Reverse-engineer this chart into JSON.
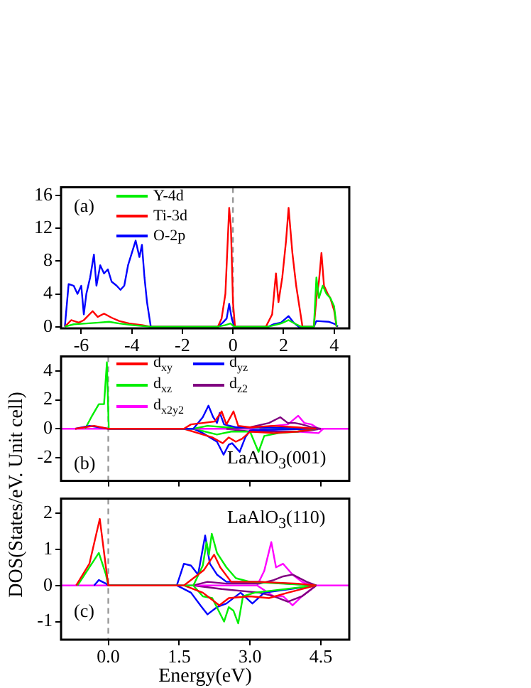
{
  "chart_data": [
    {
      "type": "line",
      "annotations": [
        "(a)"
      ],
      "legend": "top left",
      "xlim": [
        -6.8,
        4.6
      ],
      "xticks": [
        -6,
        -4,
        -2,
        0,
        2,
        4
      ],
      "ylim": [
        -0.2,
        17
      ],
      "yticks": [
        0,
        4,
        8,
        12,
        16
      ],
      "grid": false,
      "ref_lines": [
        {
          "axis": "x",
          "value": 0,
          "color": "#999999",
          "line_style": "dashed"
        }
      ],
      "series": [
        {
          "name": "Y-4d",
          "color": "#00ee00",
          "x": [
            -6.65,
            -6.3,
            -5.8,
            -5.3,
            -4.9,
            -4.5,
            -4,
            -3.25,
            -0.6,
            -0.3,
            -0.1,
            0.05,
            1.4,
            1.9,
            2.2,
            2.5,
            2.7,
            3.2,
            3.3,
            3.4,
            3.55,
            3.7,
            3.85,
            4.0,
            4.1
          ],
          "values": [
            0,
            0.3,
            0.4,
            0.5,
            0.6,
            0.4,
            0.2,
            0,
            0,
            0.2,
            0.4,
            0,
            0,
            0.4,
            0.8,
            0.3,
            0,
            0,
            6,
            3.5,
            5,
            4,
            3.5,
            2.5,
            0
          ]
        },
        {
          "name": "Ti-3d",
          "color": "#ff0000",
          "x": [
            -6.65,
            -6.4,
            -6.1,
            -5.9,
            -5.55,
            -5.35,
            -5.1,
            -4.8,
            -4.5,
            -4.1,
            -3.6,
            -3.25,
            -0.6,
            -0.45,
            -0.3,
            -0.15,
            -0.08,
            0,
            0.08,
            1.3,
            1.55,
            1.7,
            1.8,
            1.95,
            2.1,
            2.2,
            2.35,
            2.5,
            2.65,
            2.75,
            3.2,
            3.3,
            3.4,
            3.5,
            3.6,
            3.75,
            3.85,
            4.0,
            4.1
          ],
          "values": [
            0,
            0.8,
            0.5,
            0.8,
            1.9,
            1.2,
            1.6,
            1.1,
            0.7,
            0.4,
            0.2,
            0,
            0,
            1,
            4,
            14.5,
            12,
            3,
            0,
            0,
            1.5,
            6.5,
            3,
            6,
            10.5,
            14.5,
            9,
            5,
            2,
            0,
            0,
            3.5,
            5.5,
            9,
            5,
            4,
            3.5,
            2,
            0
          ]
        },
        {
          "name": "O-2p",
          "color": "#0000ff",
          "x": [
            -6.65,
            -6.5,
            -6.3,
            -6.15,
            -6.0,
            -5.9,
            -5.8,
            -5.65,
            -5.5,
            -5.4,
            -5.25,
            -5.1,
            -4.95,
            -4.8,
            -4.6,
            -4.45,
            -4.3,
            -4.15,
            -4,
            -3.85,
            -3.7,
            -3.6,
            -3.5,
            -3.4,
            -3.25,
            -0.6,
            -0.4,
            -0.25,
            -0.15,
            -0.05,
            0.05,
            1.4,
            1.6,
            1.9,
            2.2,
            2.4,
            2.6,
            3.2,
            3.3,
            3.8,
            4.05,
            4.15
          ],
          "values": [
            0,
            5.2,
            5,
            4,
            5,
            1.5,
            4,
            6,
            8.8,
            5,
            7.5,
            6.5,
            7,
            5.5,
            5,
            4.5,
            5,
            7.5,
            9,
            10.5,
            8.5,
            10,
            6,
            3,
            0,
            0,
            0.5,
            1,
            2.8,
            1,
            0,
            0,
            0.3,
            0.5,
            1.3,
            0.5,
            0,
            0,
            0.7,
            0.6,
            0.3,
            0
          ]
        }
      ]
    },
    {
      "type": "line",
      "ylabel": "DOS(States/eV. Unit cell)",
      "annotations": [
        "(b)",
        "LaAlO$_{3}$(001)"
      ],
      "legend": "top left",
      "tick_labels": "y",
      "xlim": [
        -1.0,
        5.1
      ],
      "xticks": [
        0,
        1.5,
        3,
        4.5
      ],
      "ylim": [
        -3.6,
        5.0
      ],
      "yticks": [
        -2,
        0,
        2,
        4
      ],
      "grid": false,
      "ref_lines": [
        {
          "axis": "x",
          "value": 0,
          "color": "#999999",
          "line_style": "dashed"
        }
      ],
      "series": [
        {
          "name": "d$_{xy}$",
          "color": "#ff0000",
          "x": [
            -0.7,
            -0.3,
            0,
            1.6,
            1.75,
            2.0,
            2.25,
            2.4,
            2.5,
            2.65,
            2.75,
            3.0,
            3.5,
            4.0,
            4.4
          ],
          "values": [
            0,
            0.2,
            0,
            0,
            0.3,
            0.4,
            0.5,
            1.2,
            0.3,
            1.2,
            0.2,
            0.1,
            0.2,
            0.1,
            0
          ]
        },
        {
          "name": "d$_{yz}$",
          "color": "#0000ff",
          "x": [
            -0.7,
            -0.4,
            0,
            1.8,
            2.0,
            2.12,
            2.22,
            2.3,
            2.36,
            2.45,
            2.7,
            3.2,
            4.4
          ],
          "values": [
            0,
            0.2,
            0,
            0,
            0.8,
            1.6,
            0.8,
            0.4,
            1.1,
            0.3,
            0.1,
            0.1,
            0
          ]
        },
        {
          "name": "d$_{xz}$",
          "color": "#00ee00",
          "x": [
            -0.49,
            -0.36,
            -0.2,
            -0.09,
            -0.03,
            0.01,
            1.8,
            2.1,
            2.5,
            3.0,
            4.4
          ],
          "values": [
            0,
            0.8,
            1.7,
            1.7,
            4.6,
            0,
            0,
            0.2,
            0.1,
            0.1,
            0
          ]
        },
        {
          "name": "d$_{z2}$",
          "color": "#800080",
          "x": [
            2.5,
            3.0,
            3.4,
            3.64,
            3.8,
            3.95,
            4.1,
            4.3,
            4.5
          ],
          "values": [
            0,
            0.1,
            0.4,
            0.8,
            0.4,
            0.4,
            0.3,
            0.1,
            0
          ]
        },
        {
          "name": "d$_{x2y2}$",
          "color": "#ff00ff",
          "x": [
            -1.0,
            3.0,
            3.5,
            3.8,
            4.02,
            4.15,
            4.3,
            4.45,
            5.1
          ],
          "values": [
            0,
            0,
            0.2,
            0.3,
            0.9,
            0.4,
            0.3,
            0,
            0
          ]
        },
        {
          "color": "#ff0000",
          "x": [
            1.6,
            1.9,
            2.2,
            2.42,
            2.55,
            2.7,
            2.83,
            3.0,
            3.5,
            4.0,
            4.4
          ],
          "values": [
            0,
            -0.3,
            -0.6,
            -1.0,
            -0.6,
            -0.9,
            -0.7,
            -0.2,
            -0.3,
            -0.2,
            0
          ]
        },
        {
          "color": "#0000ff",
          "x": [
            1.8,
            2.0,
            2.15,
            2.3,
            2.44,
            2.55,
            2.62,
            2.7,
            2.78,
            2.9,
            3.0,
            4.4
          ],
          "values": [
            0,
            -0.3,
            -0.6,
            -0.9,
            -1.8,
            -1.1,
            -1.0,
            -1.3,
            -1.6,
            -0.6,
            -0.1,
            0
          ]
        },
        {
          "color": "#00ee00",
          "x": [
            1.8,
            2.3,
            2.6,
            3.0,
            3.18,
            3.3,
            3.6,
            4.0,
            4.4
          ],
          "values": [
            0,
            -0.4,
            -0.2,
            -0.2,
            -1.6,
            -0.5,
            -0.3,
            -0.2,
            0
          ]
        },
        {
          "color": "#800080",
          "x": [
            2.5,
            3.0,
            3.5,
            4.0,
            4.3,
            4.5
          ],
          "values": [
            0,
            -0.2,
            -0.2,
            -0.2,
            -0.1,
            0
          ]
        },
        {
          "color": "#ff00ff",
          "x": [
            3.2,
            3.6,
            4.0,
            4.45,
            4.55
          ],
          "values": [
            0,
            -0.2,
            -0.2,
            -0.3,
            0
          ]
        }
      ]
    },
    {
      "type": "line",
      "xlabel": "Energy(eV)",
      "annotations": [
        "LaAlO$_{3}$(110)",
        "(c)"
      ],
      "xlim": [
        -1.0,
        5.1
      ],
      "xticks": [
        {
          "value": 0,
          "label": "0.0"
        },
        {
          "value": 1.5,
          "label": "1.5"
        },
        {
          "value": 3,
          "label": "3.0"
        },
        {
          "value": 4.5,
          "label": "4.5"
        }
      ],
      "ylim": [
        -1.5,
        2.4
      ],
      "yticks": [
        -1,
        0,
        1,
        2
      ],
      "grid": false,
      "ref_lines": [
        {
          "axis": "x",
          "value": 0,
          "color": "#999999",
          "line_style": "dashed"
        }
      ],
      "series": [
        {
          "color": "#ff0000",
          "x": [
            -0.68,
            -0.4,
            -0.18,
            -0.05,
            0,
            1.6,
            2.02,
            2.24,
            2.37,
            2.6,
            3.2,
            4.0,
            4.4
          ],
          "values": [
            0,
            0.6,
            1.84,
            0.5,
            0,
            0,
            0.42,
            0.85,
            0.5,
            0.1,
            0.1,
            0.05,
            0
          ]
        },
        {
          "color": "#00ee00",
          "x": [
            -0.65,
            -0.2,
            -0.05,
            0,
            1.8,
            2.0,
            2.08,
            2.13,
            2.19,
            2.3,
            2.5,
            2.7,
            3.0,
            4.4
          ],
          "values": [
            0,
            0.9,
            0.3,
            0,
            0,
            0.55,
            1.2,
            0.85,
            1.43,
            0.9,
            0.5,
            0.2,
            0.1,
            0
          ]
        },
        {
          "color": "#0000ff",
          "x": [
            -0.3,
            -0.2,
            -0.05,
            0,
            1.45,
            1.6,
            1.75,
            1.9,
            2.05,
            2.15,
            2.3,
            2.5,
            3.2,
            4.4
          ],
          "values": [
            0,
            0.15,
            0.05,
            0,
            0,
            0.6,
            0.55,
            0.3,
            1.38,
            0.6,
            0.3,
            0.1,
            0.1,
            0
          ]
        },
        {
          "color": "#800080",
          "x": [
            1.8,
            2.1,
            2.5,
            3.2,
            3.5,
            3.7,
            3.9,
            4.2,
            4.4
          ],
          "values": [
            0,
            0.1,
            0.05,
            0.05,
            0.15,
            0.25,
            0.3,
            0.1,
            0
          ]
        },
        {
          "color": "#ff00ff",
          "x": [
            -1.0,
            3.15,
            3.3,
            3.45,
            3.55,
            3.7,
            3.9,
            4.1,
            4.3,
            5.1
          ],
          "values": [
            0,
            0,
            0.4,
            1.2,
            0.5,
            0.6,
            0.3,
            0.1,
            0,
            0
          ]
        },
        {
          "color": "#ff0000",
          "x": [
            1.6,
            2.0,
            2.2,
            2.35,
            2.55,
            3.0,
            3.4,
            3.8,
            4.4
          ],
          "values": [
            0,
            -0.2,
            -0.4,
            -0.55,
            -0.35,
            -0.3,
            -0.35,
            -0.2,
            0
          ]
        },
        {
          "color": "#00ee00",
          "x": [
            1.8,
            2.0,
            2.2,
            2.45,
            2.55,
            2.65,
            2.75,
            2.85,
            3.1,
            4.4
          ],
          "values": [
            0,
            -0.3,
            -0.35,
            -1.0,
            -0.6,
            -0.7,
            -1.05,
            -0.3,
            -0.2,
            0
          ]
        },
        {
          "color": "#0000ff",
          "x": [
            1.45,
            1.75,
            1.95,
            2.1,
            2.3,
            2.5,
            2.8,
            3.05,
            3.3,
            4.4
          ],
          "values": [
            0,
            -0.2,
            -0.55,
            -0.8,
            -0.6,
            -0.5,
            -0.2,
            -0.5,
            -0.2,
            0
          ]
        },
        {
          "color": "#800080",
          "x": [
            1.8,
            2.4,
            3.2,
            3.5,
            3.8,
            4.1,
            4.4
          ],
          "values": [
            0,
            -0.1,
            -0.2,
            -0.3,
            -0.45,
            -0.3,
            0
          ]
        },
        {
          "color": "#ff00ff",
          "x": [
            3.15,
            3.5,
            3.7,
            3.9,
            4.1,
            4.4
          ],
          "values": [
            0,
            -0.3,
            -0.3,
            -0.55,
            -0.3,
            0
          ]
        }
      ]
    }
  ]
}
